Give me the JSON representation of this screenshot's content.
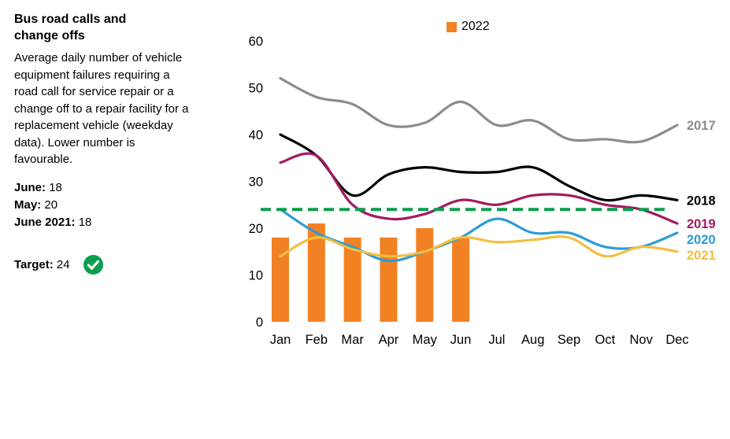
{
  "panel": {
    "title": "Bus road calls and change offs",
    "description": "Average daily number of vehicle equipment failures requiring a road call for service repair or a change off to a repair facility for a replacement vehicle (weekday data). Lower number is favourable.",
    "stats": [
      {
        "label": "June:",
        "value": "18"
      },
      {
        "label": "May:",
        "value": "20"
      },
      {
        "label": "June 2021:",
        "value": "18"
      }
    ],
    "target_label": "Target:",
    "target_value": "24",
    "check_color": "#0A9E4F"
  },
  "chart_data": {
    "type": "line",
    "title": "",
    "xlabel": "",
    "ylabel": "",
    "categories": [
      "Jan",
      "Feb",
      "Mar",
      "Apr",
      "May",
      "Jun",
      "Jul",
      "Aug",
      "Sep",
      "Oct",
      "Nov",
      "Dec"
    ],
    "ylim": [
      0,
      60
    ],
    "yticks": [
      0,
      10,
      20,
      30,
      40,
      50,
      60
    ],
    "grid": false,
    "legend_position": "top-center",
    "target": {
      "value": 24,
      "color": "#0A9E4F",
      "style": "dashed"
    },
    "series": [
      {
        "name": "2017",
        "color": "#8C8C8C",
        "values": [
          52,
          48,
          46.5,
          42,
          42.5,
          47,
          42,
          43,
          39,
          39,
          38.5,
          42
        ]
      },
      {
        "name": "2018",
        "color": "#000000",
        "values": [
          40,
          35.5,
          27,
          31.5,
          33,
          32,
          32,
          33,
          29,
          26,
          27,
          26
        ]
      },
      {
        "name": "2019",
        "color": "#A21B61",
        "values": [
          34,
          35.5,
          25,
          22,
          23,
          26,
          25,
          27,
          27,
          25,
          24,
          21
        ]
      },
      {
        "name": "2020",
        "color": "#2E9BD6",
        "values": [
          24,
          19,
          16,
          13,
          15,
          18,
          22,
          19,
          19,
          16,
          16,
          19
        ]
      },
      {
        "name": "2021",
        "color": "#F2BE42",
        "values": [
          14,
          18,
          15.5,
          14,
          15,
          18,
          17,
          17.5,
          18,
          14,
          16,
          15
        ]
      }
    ],
    "bars": {
      "name": "2022",
      "color": "#F28124",
      "values": [
        18,
        21,
        18,
        18,
        20,
        18,
        null,
        null,
        null,
        null,
        null,
        null
      ]
    }
  }
}
